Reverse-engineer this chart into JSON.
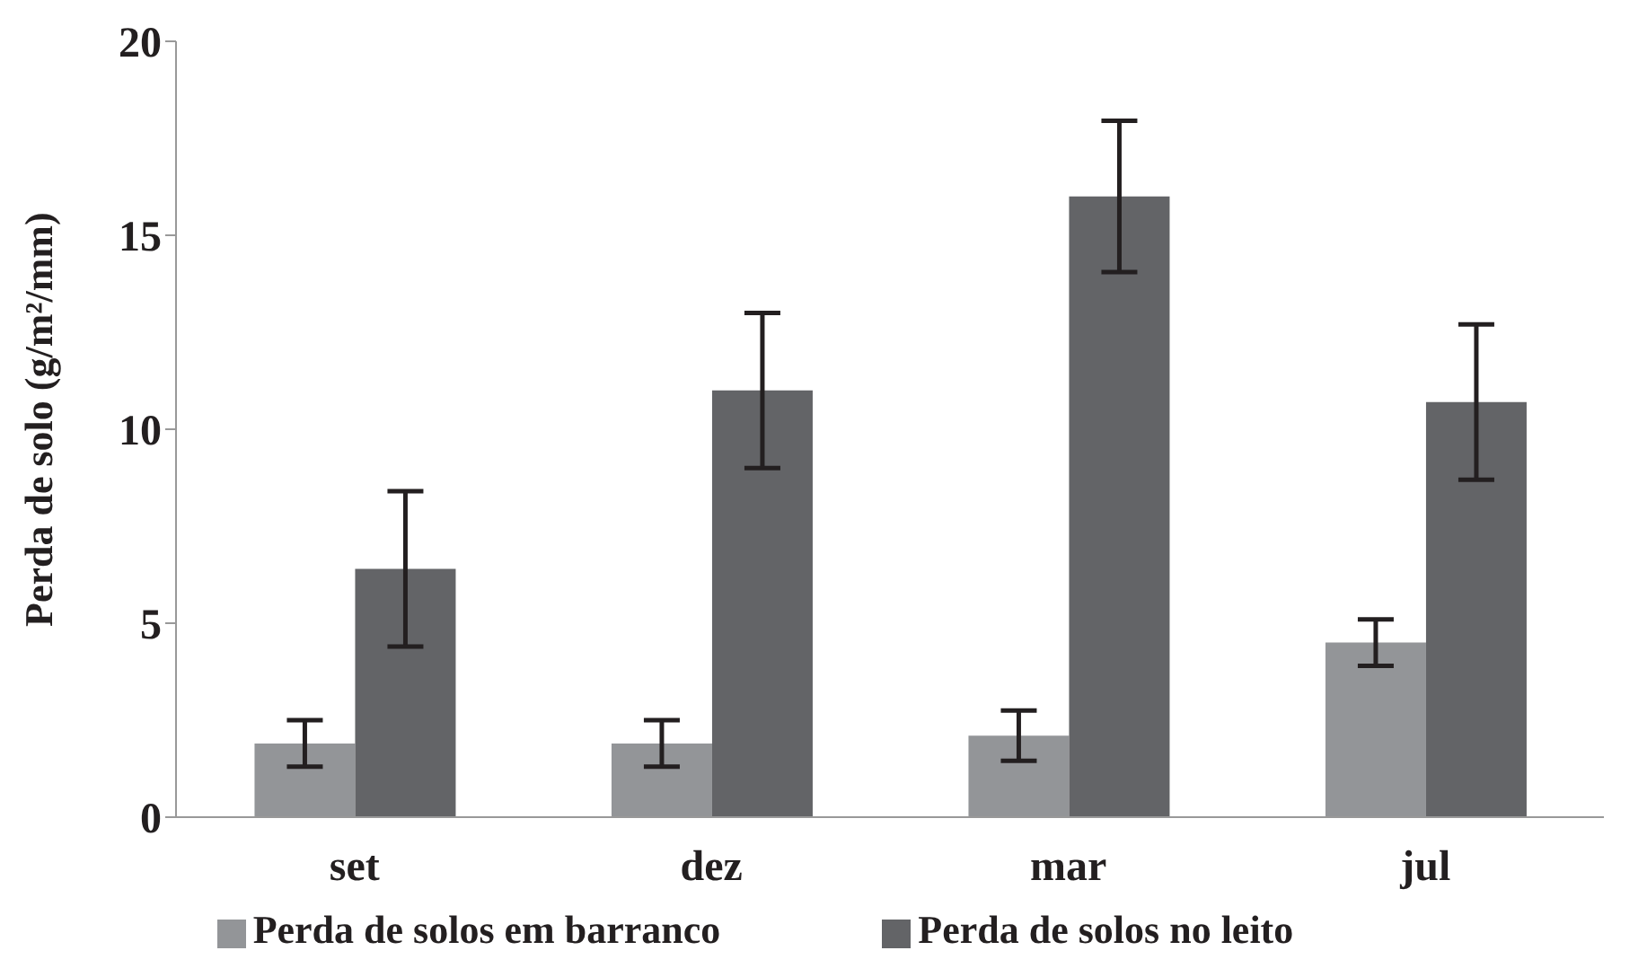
{
  "chart_data": {
    "type": "bar",
    "ylabel": "Perda de solo (g/m²/mm)",
    "categories": [
      "set",
      "dez",
      "mar",
      "jul"
    ],
    "series": [
      {
        "name": "Perda de solos em barranco",
        "color": "#939598",
        "values": [
          1.9,
          1.9,
          2.1,
          4.5
        ],
        "errors": [
          0.6,
          0.6,
          0.65,
          0.6
        ]
      },
      {
        "name": "Perda de solos no leito",
        "color": "#636467",
        "values": [
          6.4,
          11.0,
          16.0,
          10.7
        ],
        "errors": [
          2.0,
          2.0,
          1.95,
          2.0
        ]
      }
    ],
    "ylim": [
      0,
      20
    ],
    "yticks": [
      0,
      5,
      10,
      15,
      20
    ],
    "grid": false,
    "legend": "bottom"
  }
}
